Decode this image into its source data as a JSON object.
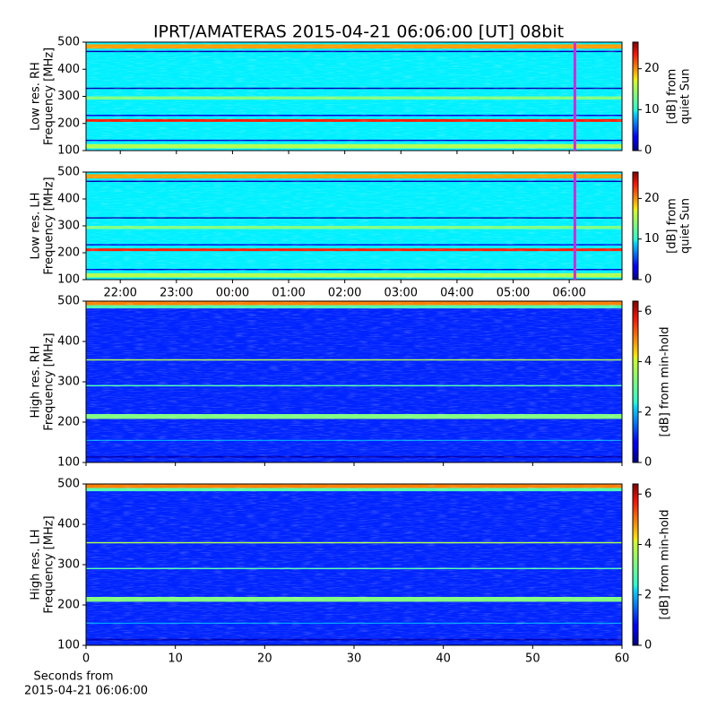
{
  "title": "IPRT/AMATERAS 2015-04-21 06:06:00 [UT]   08bit",
  "chart_data": [
    {
      "type": "spectrogram",
      "resolution": "low",
      "ylabel": [
        "Low res. RH",
        "Frequency [MHz]"
      ],
      "ylim": [
        100,
        500
      ],
      "yticks": [
        100,
        200,
        300,
        400,
        500
      ],
      "xlim": [
        21.39,
        30.94
      ],
      "marker_x": 30.1,
      "marker_color": "#e020e0",
      "colorbar": {
        "label": [
          "[dB] from",
          "quiet Sun"
        ],
        "lim": [
          0,
          26.5
        ],
        "ticks": [
          0,
          10,
          20
        ]
      }
    },
    {
      "type": "spectrogram",
      "resolution": "low",
      "ylabel": [
        "Low res. LH",
        "Frequency [MHz]"
      ],
      "ylim": [
        100,
        500
      ],
      "yticks": [
        100,
        200,
        300,
        400,
        500
      ],
      "xlim": [
        21.39,
        30.94
      ],
      "xticks": [
        {
          "value": 22,
          "label": "22:00"
        },
        {
          "value": 23,
          "label": "23:00"
        },
        {
          "value": 24,
          "label": "00:00"
        },
        {
          "value": 25,
          "label": "01:00"
        },
        {
          "value": 26,
          "label": "02:00"
        },
        {
          "value": 27,
          "label": "03:00"
        },
        {
          "value": 28,
          "label": "04:00"
        },
        {
          "value": 29,
          "label": "05:00"
        },
        {
          "value": 30,
          "label": "06:00"
        }
      ],
      "marker_x": 30.1,
      "marker_color": "#e020e0",
      "colorbar": {
        "label": [
          "[dB] from",
          "quiet Sun"
        ],
        "lim": [
          0,
          26.5
        ],
        "ticks": [
          0,
          10,
          20
        ]
      }
    },
    {
      "type": "spectrogram",
      "resolution": "high",
      "ylabel": [
        "High res. RH",
        "Frequency [MHz]"
      ],
      "ylim": [
        100,
        500
      ],
      "yticks": [
        100,
        200,
        300,
        400,
        500
      ],
      "xlim": [
        0,
        60
      ],
      "colorbar": {
        "label": [
          "[dB] from min-hold"
        ],
        "lim": [
          0,
          6.4
        ],
        "ticks": [
          0,
          2,
          4,
          6
        ]
      }
    },
    {
      "type": "spectrogram",
      "resolution": "high",
      "ylabel": [
        "High res. LH",
        "Frequency [MHz]"
      ],
      "ylim": [
        100,
        500
      ],
      "yticks": [
        100,
        200,
        300,
        400,
        500
      ],
      "xlim": [
        0,
        60
      ],
      "xticks": [
        0,
        10,
        20,
        30,
        40,
        50,
        60
      ],
      "xlabel": [
        "Seconds from",
        "2015-04-21 06:06:00"
      ],
      "colorbar": {
        "label": [
          "[dB] from min-hold"
        ],
        "lim": [
          0,
          6.4
        ],
        "ticks": [
          0,
          2,
          4,
          6
        ]
      }
    }
  ]
}
